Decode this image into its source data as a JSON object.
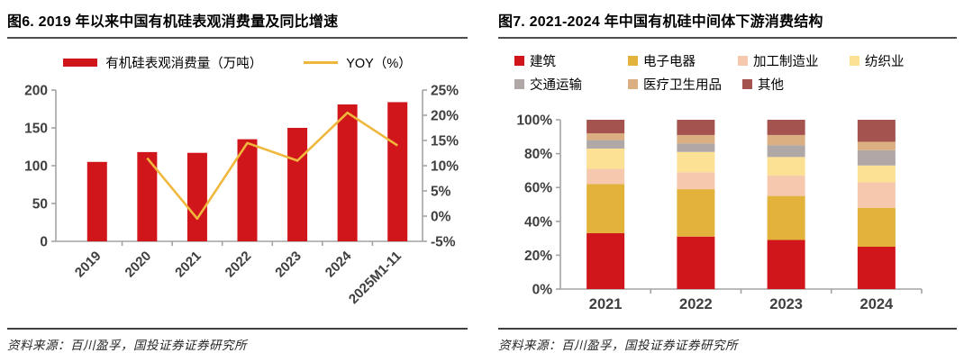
{
  "figures": [
    {
      "title_prefix": "图6.",
      "title_num": "2019",
      "title_rest": "年以来中国有机硅表观消费量及同比增速",
      "source": "资料来源：百川盈孚，国投证券证券研究所"
    },
    {
      "title_prefix": "图7.",
      "title_num": "2021-2024",
      "title_rest": "年中国有机硅中间体下游消费结构",
      "source": "资料来源：百川盈孚，国投证券证券研究所"
    }
  ],
  "colors": {
    "red": "#D0161B",
    "gold": "#E3B23B",
    "peach": "#F6C9AF",
    "pale_yellow": "#FCE093",
    "gray": "#B0A7A7",
    "tan": "#DBAF81",
    "maroon": "#A5534E",
    "yoy_line": "#EFB83D",
    "axis": "#A3A3A3",
    "tick_text": "#3F3F3F"
  },
  "chart_data": [
    {
      "type": "bar",
      "subtype": "bar+line-dual-axis",
      "title": "2019 年以来中国有机硅表观消费量及同比增速",
      "categories": [
        "2019",
        "2020",
        "2021",
        "2022",
        "2023",
        "2024",
        "2025M1-11"
      ],
      "series": [
        {
          "name": "有机硅表观消费量（万吨）",
          "type": "bar",
          "axis": "left",
          "color": "#D0161B",
          "values": [
            105,
            118,
            117,
            135,
            150,
            181,
            184
          ]
        },
        {
          "name": "YOY（%）",
          "type": "line",
          "axis": "right",
          "color": "#EFB83D",
          "values": [
            null,
            11.5,
            -0.5,
            14.5,
            11,
            20.5,
            14
          ]
        }
      ],
      "left_axis": {
        "min": 0,
        "max": 200,
        "step": 50,
        "ticks": [
          "0",
          "50",
          "100",
          "150",
          "200"
        ]
      },
      "right_axis": {
        "min": -5,
        "max": 25,
        "step": 5,
        "ticks": [
          "-5%",
          "0%",
          "5%",
          "10%",
          "15%",
          "20%",
          "25%"
        ]
      },
      "grid": false,
      "legend_position": "top"
    },
    {
      "type": "bar",
      "subtype": "stacked-100",
      "title": "2021-2024 年中国有机硅中间体下游消费结构",
      "categories": [
        "2021",
        "2022",
        "2023",
        "2024"
      ],
      "series": [
        {
          "name": "建筑",
          "color": "#D0161B",
          "values": [
            33,
            31,
            29,
            25
          ]
        },
        {
          "name": "电子电器",
          "color": "#E3B23B",
          "values": [
            29,
            28,
            26,
            23
          ]
        },
        {
          "name": "加工制造业",
          "color": "#F6C9AF",
          "values": [
            9,
            10,
            12,
            15
          ]
        },
        {
          "name": "纺织业",
          "color": "#FCE093",
          "values": [
            12,
            12,
            11,
            10
          ]
        },
        {
          "name": "交通运输",
          "color": "#B0A7A7",
          "values": [
            5,
            5,
            7,
            9
          ]
        },
        {
          "name": "医疗卫生用品",
          "color": "#DBAF81",
          "values": [
            4,
            5,
            6,
            5
          ]
        },
        {
          "name": "其他",
          "color": "#A5534E",
          "values": [
            8,
            9,
            9,
            13
          ]
        }
      ],
      "y_axis": {
        "min": 0,
        "max": 100,
        "step": 20,
        "ticks": [
          "0%",
          "20%",
          "40%",
          "60%",
          "80%",
          "100%"
        ]
      },
      "grid": false,
      "legend_position": "top"
    }
  ]
}
